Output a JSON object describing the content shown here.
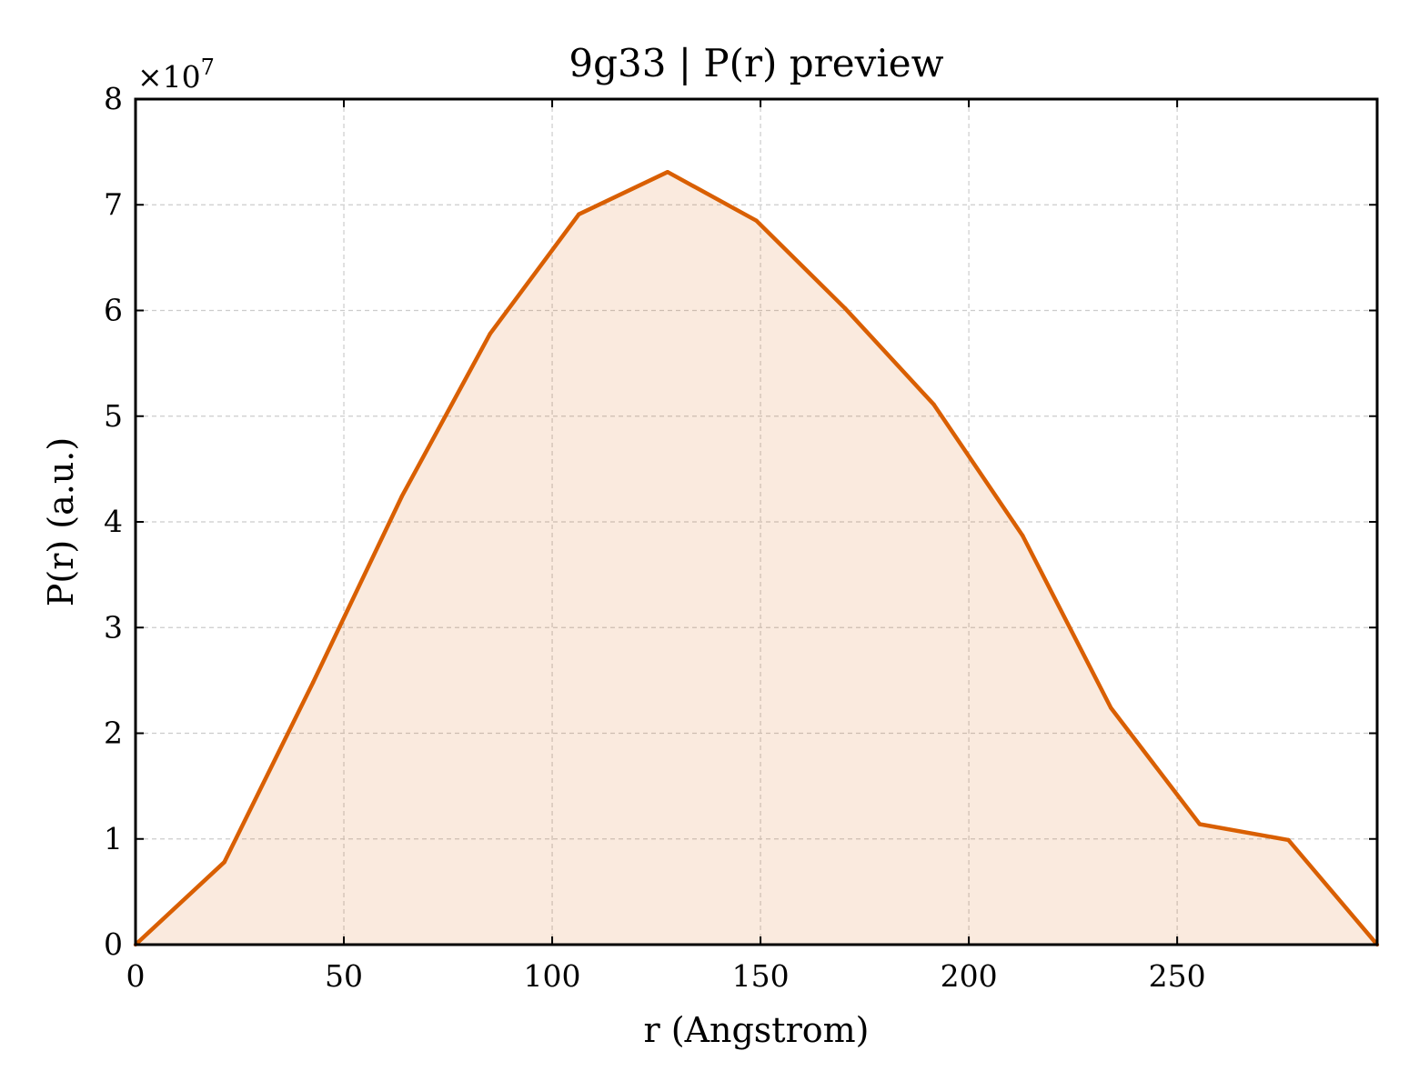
{
  "chart_data": {
    "type": "area",
    "title": "9g33 | P(r) preview",
    "xlabel": "r (Angstrom)",
    "ylabel": "P(r) (a.u.)",
    "y_multiplier_label": "×10",
    "y_multiplier_exponent": "7",
    "x": [
      0,
      21.3,
      42.6,
      63.9,
      85.1,
      106.4,
      127.7,
      149.0,
      170.3,
      191.6,
      212.9,
      234.1,
      255.4,
      276.7,
      298.0
    ],
    "y": [
      0,
      7800000,
      24800000,
      42400000,
      57800000,
      69100000,
      73100000,
      68500000,
      60200000,
      51100000,
      38700000,
      22400000,
      11400000,
      9900000,
      0
    ],
    "xlim": [
      0,
      298
    ],
    "ylim": [
      0,
      80000000
    ],
    "x_ticks": [
      0,
      50,
      100,
      150,
      200,
      250
    ],
    "x_tick_labels": [
      "0",
      "50",
      "100",
      "150",
      "200",
      "250"
    ],
    "y_ticks": [
      0,
      10000000,
      20000000,
      30000000,
      40000000,
      50000000,
      60000000,
      70000000,
      80000000
    ],
    "y_tick_labels": [
      "0",
      "1",
      "2",
      "3",
      "4",
      "5",
      "6",
      "7",
      "8"
    ],
    "grid": true,
    "colors": {
      "line": "#d95f02",
      "fill": "#d95f02",
      "fill_opacity": 0.13,
      "axes": "#000000",
      "grid": "#cccccc"
    }
  }
}
